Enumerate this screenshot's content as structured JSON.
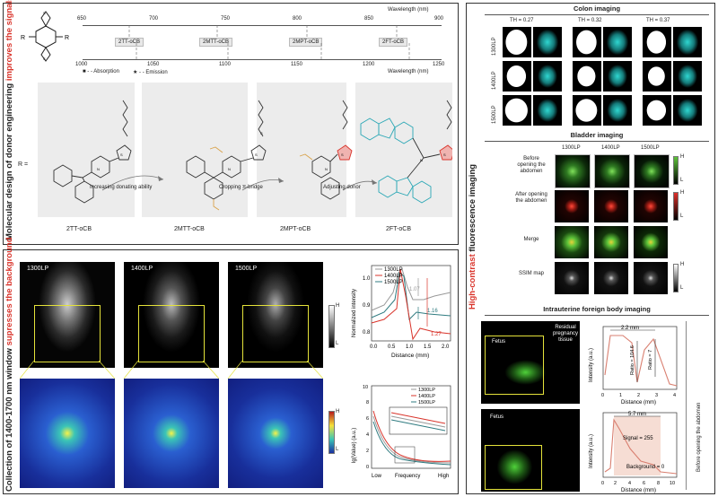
{
  "side_labels": {
    "top_left_prefix": "Molecular design of donor engineering ",
    "top_left_emph": "improves the signals",
    "bottom_left_prefix": "Collection of 1400-1700 nm window ",
    "bottom_left_emph": "supresses the background",
    "right_emph": "High-contrast",
    "right_suffix": " fluorescence imaging"
  },
  "molecule": {
    "r_label": "R",
    "r_equals": "R ="
  },
  "wavelength_axis": {
    "top_label": "Wavelength (nm)",
    "bottom_label": "Wavelength (nm)",
    "top_ticks": [
      "650",
      "700",
      "750",
      "800",
      "850",
      "900"
    ],
    "bottom_ticks": [
      "1000",
      "1050",
      "1100",
      "1150",
      "1200",
      "1250"
    ],
    "compounds": [
      "2TT-oCB",
      "2MTT-oCB",
      "2MPT-oCB",
      "2FT-oCB"
    ],
    "legend_absorption": "- - Absorption",
    "legend_emission": "- - Emission"
  },
  "donors": {
    "names": [
      "2TT-oCB",
      "2MTT-oCB",
      "2MPT-oCB",
      "2FT-oCB"
    ],
    "arrows": [
      "Increasing donating ability",
      "Cropping π-bridge",
      "Adjusting donor"
    ]
  },
  "nir_images": {
    "labels": [
      "1300LP",
      "1400LP",
      "1500LP"
    ],
    "colorbar_high": "H",
    "colorbar_low": "L",
    "fft_high": "H",
    "fft_low": "L"
  },
  "profile_chart": {
    "ylabel": "Normalized intensity",
    "xlabel": "Distance (mm)",
    "xticks": [
      "0.0",
      "0.5",
      "1.0",
      "1.5",
      "2.0"
    ],
    "yticks": [
      "0.8",
      "0.9",
      "1.0"
    ],
    "legend": [
      "1300LP",
      "1400LP",
      "1500LP"
    ],
    "annotations": [
      "1.07",
      "1.16",
      "1.27"
    ]
  },
  "freq_chart": {
    "ylabel": "lg(Value) (a.u.)",
    "xlabel": "Frequency",
    "xlow": "Low",
    "xhigh": "High",
    "yticks": [
      "0",
      "2",
      "4",
      "6",
      "8",
      "10"
    ],
    "legend": [
      "1300LP",
      "1400LP",
      "1500LP"
    ]
  },
  "colon": {
    "title": "Colon imaging",
    "thresholds": [
      "TH = 0.27",
      "TH = 0.32",
      "TH = 0.37"
    ],
    "rows": [
      "1300LP",
      "1400LP",
      "1500LP"
    ]
  },
  "bladder": {
    "title": "Bladder imaging",
    "cols": [
      "1300LP",
      "1400LP",
      "1500LP"
    ],
    "rows": [
      "Before opening the abdomen",
      "After opening the abdomen",
      "Merge",
      "SSIM map"
    ],
    "bar_high": "H",
    "bar_low": "L"
  },
  "intrauterine": {
    "title": "Intrauterine foreign body imaging",
    "fetus1": "Fetus",
    "residual": "Residual pregnancy tissue",
    "fetus2": "Fetus",
    "chart1": {
      "ylabel": "Intensity (a.u.)",
      "xlabel": "Distance (mm)",
      "xticks": [
        "0",
        "1",
        "2",
        "3",
        "4"
      ],
      "width": "2.2 mm",
      "ratio1": "Ratio = 104.6",
      "ratio2": "Ratio = 7"
    },
    "chart2": {
      "ylabel": "Intensity (a.u.)",
      "xlabel": "Distance (mm)",
      "xticks": [
        "0",
        "2",
        "4",
        "6",
        "8",
        "10"
      ],
      "width": "5.7 mm",
      "signal": "Signal = 255",
      "background": "Background = 0"
    },
    "side_note": "Before opening the abdomen"
  },
  "colors": {
    "accent_red": "#d9342b",
    "green_fluor": "#5ec43a",
    "red_fluor": "#e0302a",
    "cyan_fluor": "#22c2c0"
  }
}
